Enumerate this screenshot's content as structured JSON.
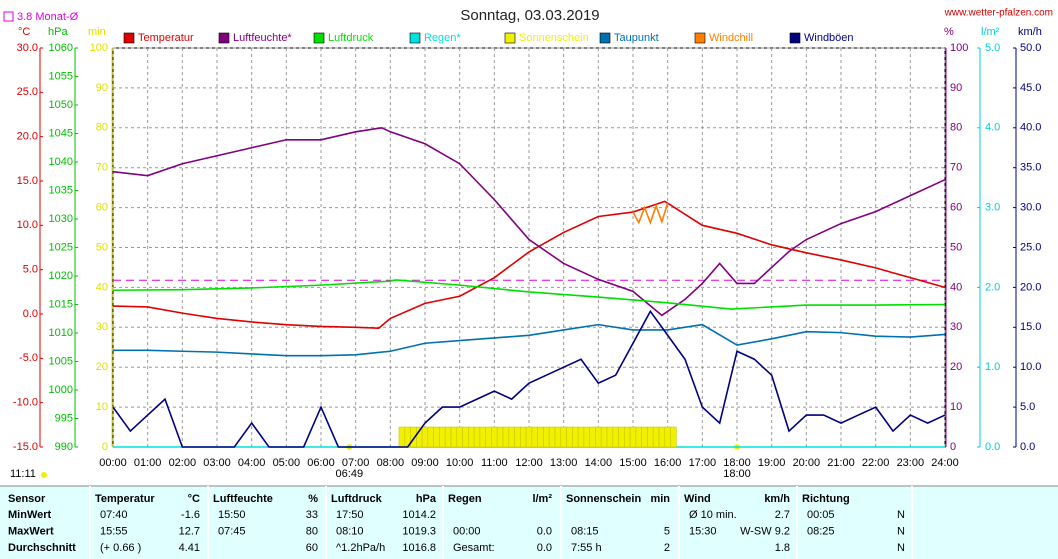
{
  "chart_data": {
    "type": "line",
    "title": "Sonntag, 03.03.2019",
    "source": "www.wetter-pfalzen.com",
    "monthly_avg": {
      "label": "3.8 Monat-Ø",
      "value": 3.8,
      "axis": "°C",
      "color": "#e000e0"
    },
    "day_length": "11:11",
    "sunrise": {
      "x": 6.817,
      "label": "06:49"
    },
    "sunset": {
      "x": 18,
      "label": "18:00"
    },
    "grid": true,
    "xlim": [
      0,
      24
    ],
    "xticks": [
      {
        "value": 0,
        "label": "00:00"
      },
      {
        "value": 1,
        "label": "01:00"
      },
      {
        "value": 2,
        "label": "02:00"
      },
      {
        "value": 3,
        "label": "03:00"
      },
      {
        "value": 4,
        "label": "04:00"
      },
      {
        "value": 5,
        "label": "05:00"
      },
      {
        "value": 6,
        "label": "06:00"
      },
      {
        "value": 7,
        "label": "07:00"
      },
      {
        "value": 8,
        "label": "08:00"
      },
      {
        "value": 9,
        "label": "09:00"
      },
      {
        "value": 10,
        "label": "10:00"
      },
      {
        "value": 11,
        "label": "11:00"
      },
      {
        "value": 12,
        "label": "12:00"
      },
      {
        "value": 13,
        "label": "13:00"
      },
      {
        "value": 14,
        "label": "14:00"
      },
      {
        "value": 15,
        "label": "15:00"
      },
      {
        "value": 16,
        "label": "16:00"
      },
      {
        "value": 17,
        "label": "17:00"
      },
      {
        "value": 18,
        "label": "18:00"
      },
      {
        "value": 19,
        "label": "19:00"
      },
      {
        "value": 20,
        "label": "20:00"
      },
      {
        "value": 21,
        "label": "21:00"
      },
      {
        "value": 22,
        "label": "22:00"
      },
      {
        "value": 23,
        "label": "23:00"
      },
      {
        "value": 24,
        "label": "24:00"
      }
    ],
    "axes": [
      {
        "unit": "°C",
        "color": "#e00000",
        "lim": [
          -15,
          30
        ],
        "ticks": [
          {
            "value": -15,
            "label": "-15.0"
          },
          {
            "value": -10,
            "label": "-10.0"
          },
          {
            "value": -5,
            "label": "-5.0"
          },
          {
            "value": 0,
            "label": "0.0"
          },
          {
            "value": 5,
            "label": "5.0"
          },
          {
            "value": 10,
            "label": "10.0"
          },
          {
            "value": 15,
            "label": "15.0"
          },
          {
            "value": 20,
            "label": "20.0"
          },
          {
            "value": 25,
            "label": "25.0"
          },
          {
            "value": 30,
            "label": "30.0"
          }
        ]
      },
      {
        "unit": "hPa",
        "color": "#00c000",
        "lim": [
          990,
          1060
        ],
        "ticks": [
          990,
          995,
          1000,
          1005,
          1010,
          1015,
          1020,
          1025,
          1030,
          1035,
          1040,
          1045,
          1050,
          1055,
          1060
        ]
      },
      {
        "unit": "min",
        "color": "#e0e000",
        "lim": [
          0,
          100
        ],
        "ticks": [
          0,
          10,
          20,
          30,
          40,
          50,
          60,
          70,
          80,
          90,
          100
        ]
      },
      {
        "unit": "%",
        "color": "#800080",
        "lim": [
          0,
          100
        ],
        "ticks": [
          0,
          10,
          20,
          30,
          40,
          50,
          60,
          70,
          80,
          90,
          100
        ]
      },
      {
        "unit": "l/m²",
        "color": "#00d0d0",
        "lim": [
          0,
          5
        ],
        "ticks": [
          {
            "value": 0,
            "label": "0.0"
          },
          {
            "value": 1,
            "label": "1.0"
          },
          {
            "value": 2,
            "label": "2.0"
          },
          {
            "value": 3,
            "label": "3.0"
          },
          {
            "value": 4,
            "label": "4.0"
          },
          {
            "value": 5,
            "label": "5.0"
          }
        ]
      },
      {
        "unit": "km/h",
        "color": "#000080",
        "lim": [
          0,
          50
        ],
        "ticks": [
          {
            "value": 0,
            "label": "0.0"
          },
          {
            "value": 5,
            "label": "5.0"
          },
          {
            "value": 10,
            "label": "10.0"
          },
          {
            "value": 15,
            "label": "15.0"
          },
          {
            "value": 20,
            "label": "20.0"
          },
          {
            "value": 25,
            "label": "25.0"
          },
          {
            "value": 30,
            "label": "30.0"
          },
          {
            "value": 35,
            "label": "35.0"
          },
          {
            "value": 40,
            "label": "40.0"
          },
          {
            "value": 45,
            "label": "45.0"
          },
          {
            "value": 50,
            "label": "50.0"
          }
        ]
      }
    ],
    "series": [
      {
        "name": "Temperatur",
        "color": "#e00000",
        "axis": "°C",
        "x": [
          0,
          1,
          2,
          3,
          4,
          5,
          6,
          7,
          7.667,
          8,
          9,
          10,
          11,
          12,
          13,
          14,
          15,
          15.917,
          16,
          17,
          18,
          19,
          20,
          21,
          22,
          23,
          24
        ],
        "values": [
          0.9,
          0.8,
          0.1,
          -0.5,
          -0.9,
          -1.2,
          -1.4,
          -1.5,
          -1.6,
          -0.5,
          1.2,
          2,
          4.1,
          7,
          9.2,
          11,
          11.5,
          12.7,
          12.5,
          10,
          9.1,
          7.8,
          6.9,
          6.1,
          5.2,
          4.1,
          3.0
        ]
      },
      {
        "name": "Luftfeuchte*",
        "color": "#800080",
        "axis": "%",
        "x": [
          0,
          1,
          2,
          3,
          4,
          5,
          6,
          7,
          7.75,
          8,
          9,
          10,
          11,
          12,
          13,
          14,
          15,
          15.833,
          16.5,
          17,
          17.5,
          18,
          18.5,
          19,
          19.5,
          20,
          21,
          22,
          23,
          24
        ],
        "values": [
          69,
          68,
          71,
          73,
          75,
          77,
          77,
          79,
          80,
          79,
          76,
          71,
          62,
          52,
          46,
          42,
          39,
          33,
          37,
          41,
          46,
          41,
          41,
          45,
          49,
          52,
          56,
          59,
          63,
          67
        ]
      },
      {
        "name": "Luftdruck",
        "color": "#00e000",
        "axis": "hPa",
        "x": [
          0,
          2,
          4,
          6,
          8,
          8.167,
          10,
          12,
          14,
          16,
          17.833,
          20,
          22,
          24
        ],
        "values": [
          1017.5,
          1017.6,
          1017.9,
          1018.4,
          1019.1,
          1019.3,
          1018.4,
          1017.2,
          1016.3,
          1015.3,
          1014.2,
          1014.9,
          1014.9,
          1015.0
        ]
      },
      {
        "name": "Regen*",
        "color": "#00e0e0",
        "axis": "l/m²",
        "x": [
          0,
          24
        ],
        "values": [
          0,
          0
        ]
      },
      {
        "name": "Sonnenschein",
        "color": "#f0f000",
        "axis": "min",
        "kind": "bar",
        "x": [
          8.25,
          8.417,
          8.583,
          8.75,
          8.917,
          9.083,
          9.25,
          9.417,
          9.583,
          9.75,
          9.917,
          10.083,
          10.25,
          10.417,
          10.583,
          10.75,
          10.917,
          11.083,
          11.25,
          11.417,
          11.583,
          11.75,
          11.917,
          12.083,
          12.25,
          12.417,
          12.583,
          12.75,
          12.917,
          13.083,
          13.25,
          13.417,
          13.583,
          13.75,
          13.917,
          14.083,
          14.25,
          14.417,
          14.583,
          14.75,
          14.917,
          15.083,
          15.25,
          15.417,
          15.583,
          15.75,
          15.917,
          16.083
        ],
        "values": [
          5,
          5,
          5,
          5,
          5,
          5,
          5,
          5,
          5,
          5,
          5,
          5,
          5,
          5,
          5,
          5,
          5,
          5,
          5,
          5,
          5,
          5,
          5,
          5,
          5,
          5,
          5,
          5,
          5,
          5,
          5,
          5,
          5,
          5,
          5,
          5,
          5,
          5,
          5,
          5,
          5,
          5,
          5,
          5,
          5,
          5,
          5,
          5
        ]
      },
      {
        "name": "Taupunkt",
        "color": "#0070b0",
        "axis": "°C",
        "x": [
          0,
          1,
          2,
          3,
          4,
          5,
          6,
          7,
          8,
          9,
          10,
          11,
          12,
          13,
          14,
          15,
          16,
          17,
          18,
          19,
          20,
          21,
          22,
          23,
          24
        ],
        "values": [
          -4.1,
          -4.1,
          -4.2,
          -4.3,
          -4.5,
          -4.7,
          -4.7,
          -4.6,
          -4.2,
          -3.3,
          -3.0,
          -2.7,
          -2.4,
          -1.8,
          -1.2,
          -1.8,
          -1.8,
          -1.2,
          -3.5,
          -2.8,
          -2.0,
          -2.1,
          -2.5,
          -2.6,
          -2.3
        ]
      },
      {
        "name": "Windchill",
        "color": "#ff8000",
        "axis": "°C",
        "x": [
          15,
          15.167,
          15.333,
          15.5,
          15.667,
          15.833,
          16
        ],
        "values": [
          11.5,
          10.3,
          12,
          10.3,
          12.2,
          10.4,
          12.5
        ]
      },
      {
        "name": "Windböen",
        "color": "#000080",
        "axis": "km/h",
        "x": [
          0,
          0.5,
          1,
          1.5,
          2,
          2.5,
          3,
          3.5,
          4,
          4.5,
          5,
          5.5,
          6,
          6.5,
          7,
          7.5,
          8,
          8.5,
          9,
          9.5,
          10,
          10.5,
          11,
          11.5,
          12,
          12.5,
          13,
          13.5,
          14,
          14.5,
          15,
          15.5,
          16,
          16.5,
          17,
          17.5,
          18,
          18.5,
          19,
          19.5,
          20,
          20.5,
          21,
          21.5,
          22,
          22.5,
          23,
          23.5,
          24
        ],
        "values": [
          5,
          2,
          4,
          6,
          0,
          0,
          0,
          0,
          3,
          0,
          0,
          0,
          5,
          0,
          0,
          0,
          0,
          0,
          3,
          5,
          5,
          6,
          7,
          6,
          8,
          9,
          10,
          11,
          8,
          9,
          13,
          17,
          14,
          11,
          5,
          3,
          12,
          11,
          9,
          2,
          4,
          4,
          3,
          4,
          5,
          2,
          4,
          3,
          4
        ]
      }
    ]
  },
  "table": {
    "sensor": "Sensor",
    "groups": [
      {
        "name": "Temperatur",
        "unit": "°C"
      },
      {
        "name": "Luftfeuchte",
        "unit": "%"
      },
      {
        "name": "Luftdruck",
        "unit": "hPa"
      },
      {
        "name": "Regen",
        "unit": "l/m²"
      },
      {
        "name": "Sonnenschein",
        "unit": "min"
      },
      {
        "name": "Wind",
        "unit": "km/h"
      },
      {
        "name": "Richtung",
        "unit": null
      }
    ],
    "rows": [
      {
        "label": "MinWert",
        "cells": [
          [
            "07:40",
            "-1.6"
          ],
          [
            "15:50",
            "33"
          ],
          [
            "17:50",
            "1014.2"
          ],
          [
            null,
            null
          ],
          [
            null,
            null
          ],
          [
            "Ø 10 min.",
            "2.7"
          ],
          [
            "00:05",
            "N"
          ]
        ]
      },
      {
        "label": "MaxWert",
        "cells": [
          [
            "15:55",
            "12.7"
          ],
          [
            "07:45",
            "80"
          ],
          [
            "08:10",
            "1019.3"
          ],
          [
            "00:00",
            "0.0"
          ],
          [
            "08:15",
            "5"
          ],
          [
            "15:30",
            "W-SW 9.2"
          ],
          [
            "08:25",
            "N"
          ]
        ]
      },
      {
        "label": "Durchschnitt",
        "cells": [
          [
            "(+ 0.66 )",
            "4.41"
          ],
          [
            null,
            "60"
          ],
          [
            "^1.2hPa/h",
            "1016.8"
          ],
          [
            "Gesamt:",
            "0.0"
          ],
          [
            "7:55 h",
            "2"
          ],
          [
            null,
            "1.8"
          ],
          [
            null,
            "N"
          ]
        ]
      }
    ]
  }
}
